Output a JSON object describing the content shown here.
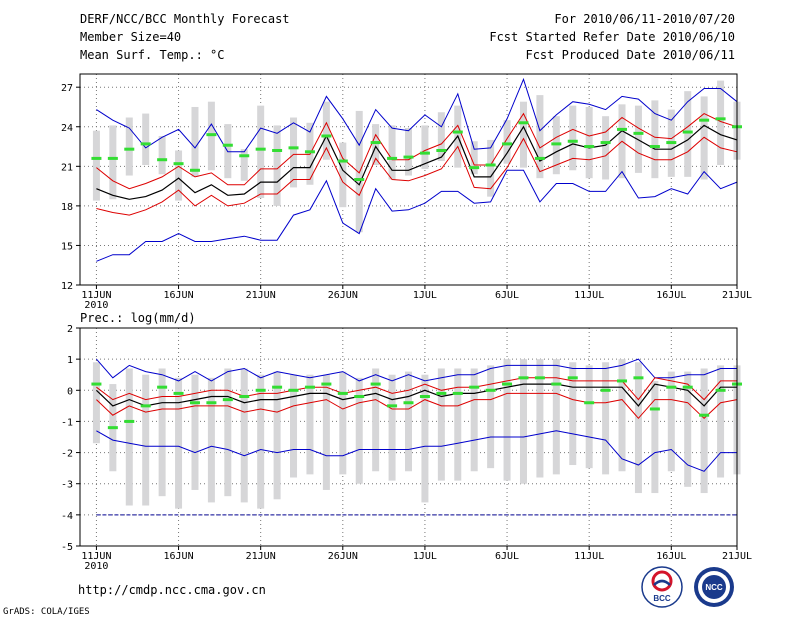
{
  "header": {
    "title": "DERF/NCC/BCC Monthly Forecast",
    "member_size": "Member Size=40",
    "variable": "Mean Surf. Temp.: °C",
    "period": "For 2010/06/11-2010/07/20",
    "fcst_started": "Fcst Started Refer Date 2010/06/10",
    "fcst_produced": "Fcst Produced Date 2010/06/11"
  },
  "footer": {
    "url": "http://cmdp.ncc.cma.gov.cn",
    "credit": "GrADS: COLA/IGES",
    "logo_left": "BCC",
    "logo_right": "NCC"
  },
  "colors": {
    "box": "#d6d6d8",
    "obs": "#33dd33",
    "mean": "#000000",
    "sigma": "#dd0000",
    "extreme": "#0000cc",
    "grid": "#777777",
    "floor": "#3333aa"
  },
  "chart_data": [
    {
      "type": "box",
      "title": "Mean Surf. Temp.: °C",
      "ylim": [
        12,
        28
      ],
      "yticks": [
        12,
        15,
        18,
        21,
        24,
        27
      ],
      "xlim": [
        0,
        40
      ],
      "xticks": [
        {
          "day": 1,
          "label": "11JUN",
          "sub": "2010"
        },
        {
          "day": 6,
          "label": "16JUN"
        },
        {
          "day": 11,
          "label": "21JUN"
        },
        {
          "day": 16,
          "label": "26JUN"
        },
        {
          "day": 21,
          "label": "1JUL"
        },
        {
          "day": 26,
          "label": "6JUL"
        },
        {
          "day": 31,
          "label": "11JUL"
        },
        {
          "day": 36,
          "label": "16JUL"
        },
        {
          "day": 40,
          "label": "21JUL"
        }
      ],
      "days": [
        1,
        2,
        3,
        4,
        5,
        6,
        7,
        8,
        9,
        10,
        11,
        12,
        13,
        14,
        15,
        16,
        17,
        18,
        19,
        20,
        21,
        22,
        23,
        24,
        25,
        26,
        27,
        28,
        29,
        30,
        31,
        32,
        33,
        34,
        35,
        36,
        37,
        38,
        39,
        40
      ],
      "series": {
        "mean": [
          19.3,
          18.8,
          18.5,
          18.7,
          19.2,
          20.1,
          19.0,
          19.6,
          18.8,
          18.9,
          19.8,
          19.8,
          20.9,
          20.9,
          23.3,
          20.7,
          19.6,
          22.5,
          20.7,
          20.7,
          21.2,
          21.7,
          23.3,
          20.2,
          20.2,
          22.0,
          24.0,
          21.4,
          22.1,
          22.7,
          22.4,
          22.6,
          23.7,
          23.0,
          22.3,
          22.3,
          23.0,
          24.1,
          23.4,
          23.0
        ],
        "plus_sigma": [
          20.9,
          19.9,
          19.3,
          19.7,
          20.2,
          21.0,
          20.2,
          20.5,
          19.6,
          19.6,
          20.8,
          20.8,
          21.9,
          21.9,
          24.3,
          21.6,
          20.5,
          23.4,
          21.5,
          21.5,
          22.2,
          22.7,
          24.1,
          21.1,
          21.1,
          23.1,
          25.0,
          22.4,
          23.2,
          23.8,
          23.3,
          23.6,
          24.7,
          23.9,
          23.2,
          23.1,
          24.0,
          25.0,
          24.4,
          24.0
        ],
        "minus_sigma": [
          17.8,
          17.5,
          17.3,
          17.7,
          18.3,
          19.2,
          18.0,
          18.8,
          18.0,
          18.2,
          18.9,
          18.9,
          20.0,
          20.0,
          22.4,
          19.8,
          18.8,
          21.6,
          20.0,
          19.9,
          20.3,
          20.8,
          22.5,
          19.4,
          19.3,
          20.9,
          23.1,
          20.6,
          21.1,
          21.6,
          21.5,
          21.8,
          22.9,
          22.0,
          21.5,
          21.5,
          22.1,
          23.2,
          22.4,
          22.1
        ],
        "max": [
          25.3,
          24.5,
          23.9,
          22.4,
          23.2,
          23.8,
          22.4,
          24.2,
          22.1,
          22.1,
          23.9,
          23.5,
          24.3,
          23.6,
          26.3,
          24.6,
          22.6,
          25.3,
          23.9,
          23.7,
          24.9,
          24.0,
          26.5,
          22.3,
          22.4,
          24.6,
          27.6,
          23.7,
          24.9,
          25.9,
          25.7,
          25.3,
          26.3,
          26.1,
          25.0,
          24.5,
          25.9,
          26.9,
          26.9,
          25.9
        ],
        "min": [
          13.8,
          14.3,
          14.3,
          15.3,
          15.3,
          15.9,
          15.3,
          15.3,
          15.5,
          15.7,
          15.4,
          15.4,
          17.3,
          17.7,
          19.9,
          16.7,
          15.9,
          19.3,
          17.6,
          17.7,
          18.2,
          19.1,
          19.1,
          18.2,
          18.3,
          20.7,
          20.7,
          18.3,
          19.7,
          19.7,
          19.1,
          19.1,
          20.6,
          18.6,
          18.7,
          19.3,
          18.9,
          20.6,
          19.3,
          19.8
        ],
        "box_top": [
          23.7,
          24.1,
          24.7,
          25.0,
          23.3,
          22.2,
          25.5,
          25.9,
          24.2,
          22.3,
          25.6,
          24.1,
          24.7,
          24.3,
          25.9,
          22.8,
          25.2,
          24.2,
          24.1,
          23.9,
          24.1,
          25.1,
          25.6,
          22.9,
          23.0,
          24.5,
          25.9,
          26.4,
          24.8,
          25.6,
          25.5,
          24.8,
          25.7,
          25.6,
          26.0,
          25.3,
          26.7,
          26.3,
          27.5,
          25.9
        ],
        "box_bottom": [
          18.4,
          18.5,
          20.3,
          21.1,
          20.4,
          18.4,
          20.2,
          20.7,
          20.1,
          19.9,
          18.6,
          18.0,
          19.4,
          19.6,
          21.5,
          17.9,
          16.0,
          21.1,
          20.0,
          20.3,
          20.8,
          21.4,
          20.9,
          20.4,
          18.7,
          21.2,
          20.9,
          20.1,
          20.4,
          20.7,
          20.1,
          20.0,
          20.1,
          20.5,
          20.1,
          20.2,
          20.2,
          20.0,
          21.1,
          21.5
        ],
        "obs": [
          21.6,
          21.6,
          22.3,
          22.7,
          21.5,
          21.2,
          20.7,
          23.4,
          22.6,
          21.8,
          22.3,
          22.2,
          22.4,
          22.1,
          23.3,
          21.4,
          20.0,
          22.8,
          21.6,
          21.7,
          22.0,
          22.2,
          23.6,
          20.9,
          21.1,
          22.7,
          24.3,
          21.6,
          22.7,
          22.9,
          22.5,
          22.8,
          23.8,
          23.5,
          22.5,
          22.8,
          23.6,
          24.5,
          24.6,
          24.0
        ]
      }
    },
    {
      "type": "box",
      "title": "Prec.: log(mm/d)",
      "ylim": [
        -5,
        2
      ],
      "yticks": [
        -5,
        -4,
        -3,
        -2,
        -1,
        0,
        1,
        2
      ],
      "floor_value": -4,
      "xlim": [
        0,
        40
      ],
      "xticks": [
        {
          "day": 1,
          "label": "11JUN",
          "sub": "2010"
        },
        {
          "day": 6,
          "label": "16JUN"
        },
        {
          "day": 11,
          "label": "21JUN"
        },
        {
          "day": 16,
          "label": "26JUN"
        },
        {
          "day": 21,
          "label": "1JUL"
        },
        {
          "day": 26,
          "label": "6JUL"
        },
        {
          "day": 31,
          "label": "11JUL"
        },
        {
          "day": 36,
          "label": "16JUL"
        },
        {
          "day": 40,
          "label": "21JUL"
        }
      ],
      "days": [
        1,
        2,
        3,
        4,
        5,
        6,
        7,
        8,
        9,
        10,
        11,
        12,
        13,
        14,
        15,
        16,
        17,
        18,
        19,
        20,
        21,
        22,
        23,
        24,
        25,
        26,
        27,
        28,
        29,
        30,
        31,
        32,
        33,
        34,
        35,
        36,
        37,
        38,
        39,
        40
      ],
      "series": {
        "mean": [
          0.0,
          -0.5,
          -0.3,
          -0.5,
          -0.4,
          -0.4,
          -0.3,
          -0.2,
          -0.2,
          -0.4,
          -0.3,
          -0.3,
          -0.2,
          -0.1,
          -0.1,
          -0.3,
          -0.2,
          -0.1,
          -0.3,
          -0.2,
          0.0,
          -0.2,
          -0.1,
          -0.1,
          0.0,
          0.1,
          0.2,
          0.2,
          0.2,
          0.1,
          0.1,
          0.1,
          0.1,
          -0.5,
          0.2,
          0.1,
          0.0,
          -0.5,
          0.1,
          0.1
        ],
        "plus_sigma": [
          0.1,
          -0.3,
          -0.1,
          -0.3,
          -0.2,
          -0.2,
          -0.1,
          0.0,
          0.0,
          -0.2,
          -0.1,
          -0.1,
          0.0,
          0.1,
          0.1,
          -0.1,
          0.0,
          0.1,
          -0.1,
          0.0,
          0.2,
          0.0,
          0.1,
          0.1,
          0.2,
          0.3,
          0.4,
          0.4,
          0.4,
          0.3,
          0.3,
          0.3,
          0.3,
          -0.3,
          0.4,
          0.3,
          0.2,
          -0.3,
          0.3,
          0.3
        ],
        "minus_sigma": [
          -0.3,
          -0.8,
          -0.5,
          -0.7,
          -0.6,
          -0.6,
          -0.5,
          -0.5,
          -0.5,
          -0.7,
          -0.6,
          -0.7,
          -0.5,
          -0.4,
          -0.3,
          -0.6,
          -0.4,
          -0.3,
          -0.6,
          -0.6,
          -0.3,
          -0.5,
          -0.5,
          -0.3,
          -0.3,
          -0.1,
          -0.1,
          -0.1,
          -0.1,
          -0.3,
          -0.4,
          -0.4,
          -0.3,
          -0.9,
          -0.3,
          -0.3,
          -0.4,
          -0.9,
          -0.4,
          -0.3
        ],
        "max": [
          1.0,
          0.4,
          0.8,
          0.6,
          0.5,
          0.3,
          0.6,
          0.3,
          0.6,
          0.7,
          0.4,
          0.6,
          0.5,
          0.4,
          0.5,
          0.6,
          0.3,
          0.5,
          0.3,
          0.5,
          0.3,
          0.4,
          0.5,
          0.5,
          0.7,
          0.8,
          0.8,
          0.8,
          0.8,
          0.7,
          0.7,
          0.7,
          0.8,
          1.0,
          0.4,
          0.4,
          0.5,
          0.5,
          0.7,
          0.7
        ],
        "min": [
          -1.3,
          -1.6,
          -1.7,
          -1.8,
          -1.8,
          -1.8,
          -2.0,
          -1.8,
          -1.9,
          -2.1,
          -1.9,
          -2.0,
          -1.9,
          -1.9,
          -2.1,
          -2.1,
          -1.9,
          -1.9,
          -1.9,
          -1.9,
          -1.8,
          -1.8,
          -1.7,
          -1.6,
          -1.5,
          -1.5,
          -1.5,
          -1.4,
          -1.3,
          -1.4,
          -1.5,
          -1.6,
          -2.2,
          -2.4,
          -2.0,
          -1.9,
          -2.4,
          -2.6,
          -2.0,
          -2.0
        ],
        "box_top": [
          0.9,
          0.2,
          0.7,
          0.5,
          0.7,
          0.4,
          0.5,
          0.4,
          0.7,
          0.7,
          0.5,
          0.6,
          0.5,
          0.5,
          0.5,
          0.6,
          0.4,
          0.7,
          0.5,
          0.6,
          0.5,
          0.7,
          0.7,
          0.7,
          0.8,
          1.0,
          1.0,
          1.0,
          1.0,
          0.9,
          0.8,
          0.9,
          1.0,
          0.9,
          0.3,
          0.6,
          0.6,
          0.7,
          0.8,
          0.8
        ],
        "box_bottom": [
          -1.7,
          -2.6,
          -3.7,
          -3.7,
          -3.4,
          -3.8,
          -3.2,
          -3.6,
          -3.4,
          -3.6,
          -3.8,
          -3.5,
          -2.8,
          -2.7,
          -3.2,
          -2.7,
          -3.0,
          -2.6,
          -2.9,
          -2.6,
          -3.6,
          -2.9,
          -2.9,
          -2.6,
          -2.5,
          -2.9,
          -3.0,
          -2.8,
          -2.7,
          -2.4,
          -2.5,
          -2.7,
          -2.6,
          -3.3,
          -3.3,
          -2.6,
          -3.1,
          -3.3,
          -2.8,
          -2.7
        ],
        "obs": [
          0.2,
          -1.2,
          -1.0,
          -0.5,
          0.1,
          -0.1,
          -0.4,
          -0.4,
          -0.3,
          -0.2,
          0.0,
          0.1,
          0.0,
          0.1,
          0.2,
          -0.1,
          -0.2,
          0.2,
          -0.5,
          -0.4,
          -0.2,
          -0.1,
          -0.1,
          0.1,
          0.0,
          0.2,
          0.4,
          0.4,
          0.2,
          0.4,
          -0.4,
          0.0,
          0.3,
          0.4,
          -0.6,
          0.1,
          0.1,
          -0.8,
          0.0,
          0.2
        ]
      }
    }
  ]
}
